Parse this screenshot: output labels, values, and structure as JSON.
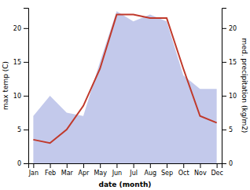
{
  "chart_data": {
    "type": "line",
    "xlabel": "date (month)",
    "ylabel": "max temp (C)",
    "y2label": "med. precipitation (kg/m2)",
    "categories": [
      "Jan",
      "Feb",
      "Mar",
      "Apr",
      "May",
      "Jun",
      "Jul",
      "Aug",
      "Sep",
      "Oct",
      "Nov",
      "Dec"
    ],
    "series": [
      {
        "type": "area",
        "color": "#b8bfe8",
        "axis": "y2",
        "values": [
          7.0,
          10.0,
          7.5,
          7.0,
          15.0,
          22.5,
          21.0,
          22.0,
          21.0,
          13.0,
          11.0,
          11.0
        ]
      },
      {
        "type": "line",
        "color": "#c0392b",
        "values": [
          3.5,
          3.0,
          5.0,
          8.5,
          14.0,
          22.0,
          22.0,
          21.5,
          21.5,
          14.0,
          7.0,
          6.0
        ]
      }
    ],
    "ylim": [
      0,
      23
    ],
    "yticks": [
      0,
      5,
      10,
      15,
      20
    ],
    "y2lim": [
      0,
      23
    ],
    "y2ticks": [
      0,
      5,
      10,
      15,
      20
    ],
    "grid": false
  }
}
